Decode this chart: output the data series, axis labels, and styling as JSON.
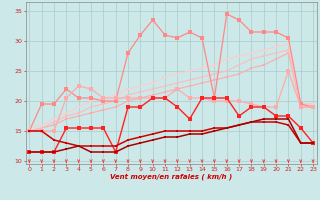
{
  "x": [
    0,
    1,
    2,
    3,
    4,
    5,
    6,
    7,
    8,
    9,
    10,
    11,
    12,
    13,
    14,
    15,
    16,
    17,
    18,
    19,
    20,
    21,
    22,
    23
  ],
  "series": [
    {
      "color": "#ffaaaa",
      "linewidth": 0.8,
      "markersize": 2.0,
      "values": [
        15.0,
        15.5,
        16.0,
        17.0,
        17.5,
        18.0,
        18.5,
        19.0,
        20.0,
        20.5,
        21.0,
        21.5,
        22.0,
        22.5,
        23.0,
        23.5,
        24.0,
        24.5,
        25.5,
        26.0,
        27.0,
        28.0,
        19.0,
        19.0
      ]
    },
    {
      "color": "#ffbbbb",
      "linewidth": 0.8,
      "markersize": 2.0,
      "values": [
        15.0,
        15.5,
        16.5,
        17.5,
        18.0,
        19.0,
        19.5,
        20.0,
        21.0,
        21.5,
        22.0,
        22.5,
        23.0,
        23.5,
        24.0,
        24.5,
        25.0,
        26.0,
        27.0,
        27.5,
        28.0,
        28.5,
        19.5,
        19.5
      ]
    },
    {
      "color": "#ffcccc",
      "linewidth": 0.8,
      "markersize": 2.0,
      "values": [
        15.5,
        16.0,
        17.0,
        18.0,
        19.0,
        20.0,
        20.5,
        21.0,
        22.0,
        22.5,
        23.0,
        24.0,
        24.5,
        25.0,
        25.5,
        26.0,
        27.0,
        27.5,
        28.0,
        28.5,
        29.0,
        29.5,
        19.5,
        19.5
      ]
    },
    {
      "color": "#ff8888",
      "linewidth": 0.9,
      "markersize": 2.5,
      "values": [
        15.0,
        19.5,
        19.5,
        22.0,
        20.5,
        20.5,
        20.0,
        20.0,
        28.0,
        31.0,
        33.5,
        31.0,
        30.5,
        31.5,
        30.5,
        20.5,
        34.5,
        33.5,
        31.5,
        31.5,
        31.5,
        30.5,
        19.5,
        19.0
      ]
    },
    {
      "color": "#ffaaaa",
      "linewidth": 0.9,
      "markersize": 2.5,
      "values": [
        15.0,
        15.0,
        15.0,
        20.5,
        22.5,
        22.0,
        20.5,
        20.5,
        20.5,
        20.5,
        20.5,
        20.5,
        22.0,
        20.5,
        20.5,
        20.0,
        20.0,
        20.0,
        19.5,
        19.0,
        19.0,
        25.0,
        19.0,
        19.0
      ]
    },
    {
      "color": "#ff2222",
      "linewidth": 1.0,
      "markersize": 2.5,
      "values": [
        11.5,
        11.5,
        11.5,
        15.5,
        15.5,
        15.5,
        15.5,
        11.5,
        19.0,
        19.0,
        20.5,
        20.5,
        19.0,
        17.0,
        20.5,
        20.5,
        20.5,
        17.5,
        19.0,
        19.0,
        17.5,
        17.5,
        15.5,
        13.0
      ]
    },
    {
      "color": "#cc0000",
      "linewidth": 1.1,
      "markersize": 2.0,
      "values": [
        15.0,
        15.0,
        13.5,
        13.0,
        12.5,
        12.5,
        12.5,
        12.5,
        13.5,
        14.0,
        14.5,
        15.0,
        15.0,
        15.0,
        15.0,
        15.5,
        15.5,
        16.0,
        16.5,
        16.5,
        16.5,
        16.0,
        13.0,
        13.0
      ]
    },
    {
      "color": "#aa0000",
      "linewidth": 1.1,
      "markersize": 2.0,
      "values": [
        11.5,
        11.5,
        11.5,
        12.0,
        12.5,
        11.5,
        11.5,
        11.5,
        12.5,
        13.0,
        13.5,
        14.0,
        14.0,
        14.5,
        14.5,
        15.0,
        15.5,
        16.0,
        16.5,
        17.0,
        17.0,
        17.0,
        13.0,
        13.0
      ]
    }
  ],
  "xlim": [
    -0.3,
    23.3
  ],
  "ylim": [
    9.5,
    36.5
  ],
  "yticks": [
    10,
    15,
    20,
    25,
    30,
    35
  ],
  "xticks": [
    0,
    1,
    2,
    3,
    4,
    5,
    6,
    7,
    8,
    9,
    10,
    11,
    12,
    13,
    14,
    15,
    16,
    17,
    18,
    19,
    20,
    21,
    22,
    23
  ],
  "xlabel": "Vent moyen/en rafales ( km/h )",
  "bg_color": "#cce8e8",
  "grid_color": "#aacccc",
  "arrow_color": "#ff3333"
}
